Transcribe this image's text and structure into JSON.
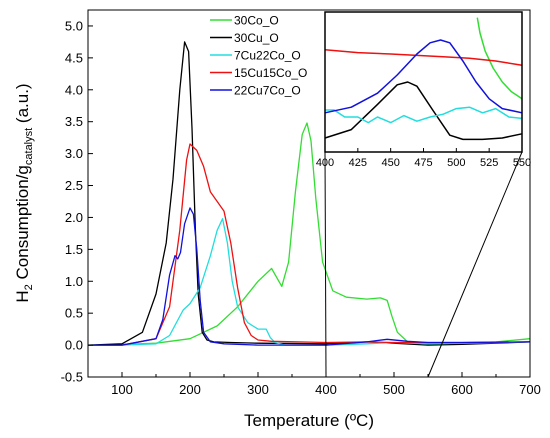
{
  "chart_data": {
    "type": "line",
    "xlabel": "Temperature (ºC)",
    "ylabel_main": "H",
    "ylabel_sub1": "2",
    "ylabel_mid": " Consumption/g",
    "ylabel_sub2": "catalyst",
    "ylabel_end": " (a.u.)",
    "xlim": [
      50,
      700
    ],
    "ylim": [
      -0.5,
      5.25
    ],
    "xticks": [
      100,
      200,
      300,
      400,
      500,
      600,
      700
    ],
    "yticks": [
      -0.5,
      0.0,
      0.5,
      1.0,
      1.5,
      2.0,
      2.5,
      3.0,
      3.5,
      4.0,
      4.5,
      5.0
    ],
    "ytick_labels": [
      "-0.5",
      "0.0",
      "0.5",
      "1.0",
      "1.5",
      "2.0",
      "2.5",
      "3.0",
      "3.5",
      "4.0",
      "4.5",
      "5.0"
    ],
    "legend_position": "top-center",
    "series": [
      {
        "name": "30Co_O",
        "color": "#33dd33",
        "x": [
          50,
          100,
          150,
          200,
          240,
          270,
          300,
          320,
          335,
          345,
          355,
          365,
          372,
          378,
          385,
          395,
          410,
          430,
          460,
          480,
          490,
          497,
          505,
          520,
          560,
          600,
          650,
          700
        ],
        "y": [
          0.0,
          0.01,
          0.03,
          0.1,
          0.3,
          0.6,
          1.0,
          1.2,
          0.92,
          1.3,
          2.4,
          3.3,
          3.48,
          3.2,
          2.3,
          1.3,
          0.85,
          0.75,
          0.72,
          0.74,
          0.7,
          0.45,
          0.2,
          0.05,
          0.02,
          0.03,
          0.05,
          0.1
        ]
      },
      {
        "name": "30Cu_O",
        "color": "#000000",
        "x": [
          50,
          100,
          130,
          150,
          165,
          175,
          185,
          192,
          198,
          203,
          208,
          212,
          218,
          225,
          235,
          260,
          300,
          400,
          460,
          500,
          550,
          600,
          700
        ],
        "y": [
          0.0,
          0.02,
          0.2,
          0.8,
          1.6,
          2.6,
          4.0,
          4.75,
          4.6,
          3.4,
          1.8,
          0.8,
          0.2,
          0.08,
          0.05,
          0.04,
          0.03,
          0.02,
          0.05,
          0.03,
          0.0,
          0.01,
          0.05
        ]
      },
      {
        "name": "7Cu22Co_O",
        "color": "#22dddd",
        "x": [
          50,
          100,
          150,
          170,
          180,
          190,
          200,
          215,
          230,
          240,
          248,
          255,
          262,
          270,
          285,
          300,
          312,
          318,
          325,
          340,
          400,
          460,
          500,
          550,
          600,
          700
        ],
        "y": [
          0.0,
          0.0,
          0.02,
          0.15,
          0.35,
          0.55,
          0.65,
          0.9,
          1.4,
          1.8,
          1.98,
          1.6,
          1.0,
          0.6,
          0.35,
          0.25,
          0.25,
          0.12,
          0.04,
          0.0,
          0.0,
          0.02,
          0.04,
          0.02,
          0.03,
          0.05
        ]
      },
      {
        "name": "15Cu15Co_O",
        "color": "#ee1111",
        "x": [
          50,
          100,
          150,
          170,
          185,
          195,
          200,
          210,
          220,
          230,
          240,
          250,
          260,
          270,
          280,
          290,
          300,
          320,
          360,
          400,
          460,
          500,
          550,
          600,
          700
        ],
        "y": [
          0.0,
          0.0,
          0.1,
          0.6,
          1.8,
          2.9,
          3.15,
          3.05,
          2.8,
          2.4,
          2.25,
          2.1,
          1.6,
          0.9,
          0.35,
          0.15,
          0.08,
          0.06,
          0.05,
          0.04,
          0.05,
          0.04,
          0.04,
          0.04,
          0.05
        ]
      },
      {
        "name": "22Cu7Co_O",
        "color": "#1111dd",
        "x": [
          50,
          100,
          150,
          160,
          170,
          178,
          182,
          186,
          192,
          200,
          205,
          210,
          215,
          220,
          230,
          250,
          300,
          400,
          460,
          490,
          520,
          550,
          600,
          700
        ],
        "y": [
          0.0,
          0.0,
          0.1,
          0.4,
          1.1,
          1.4,
          1.35,
          1.45,
          1.9,
          2.15,
          2.05,
          1.5,
          0.7,
          0.2,
          0.05,
          0.02,
          0.0,
          0.0,
          0.05,
          0.09,
          0.06,
          0.04,
          0.04,
          0.05
        ]
      }
    ],
    "inset": {
      "xlim": [
        400,
        550
      ],
      "xticks": [
        400,
        425,
        450,
        475,
        500,
        525,
        550
      ],
      "series": [
        {
          "name": "30Co_O",
          "color": "#33dd33",
          "x": [
            516,
            518,
            522,
            528,
            535,
            542,
            550
          ],
          "y": [
            0.96,
            0.85,
            0.72,
            0.6,
            0.5,
            0.43,
            0.38
          ]
        },
        {
          "name": "30Cu_O",
          "color": "#000000",
          "x": [
            400,
            420,
            440,
            455,
            463,
            470,
            482,
            495,
            505,
            520,
            535,
            550
          ],
          "y": [
            0.1,
            0.16,
            0.34,
            0.48,
            0.5,
            0.47,
            0.3,
            0.12,
            0.09,
            0.09,
            0.1,
            0.13
          ]
        },
        {
          "name": "7Cu22Co_O",
          "color": "#22dddd",
          "x": [
            400,
            407,
            415,
            425,
            433,
            440,
            450,
            460,
            470,
            480,
            490,
            500,
            510,
            520,
            530,
            540,
            550
          ],
          "y": [
            0.3,
            0.3,
            0.25,
            0.25,
            0.21,
            0.25,
            0.21,
            0.26,
            0.22,
            0.25,
            0.27,
            0.31,
            0.32,
            0.28,
            0.31,
            0.25,
            0.24
          ]
        },
        {
          "name": "15Cu15Co_O",
          "color": "#ee1111",
          "x": [
            400,
            425,
            450,
            470,
            490,
            510,
            530,
            550
          ],
          "y": [
            0.73,
            0.71,
            0.7,
            0.69,
            0.68,
            0.67,
            0.65,
            0.62
          ]
        },
        {
          "name": "22Cu7Co_O",
          "color": "#1111dd",
          "x": [
            400,
            420,
            440,
            455,
            470,
            480,
            488,
            495,
            505,
            515,
            525,
            535,
            545,
            550
          ],
          "y": [
            0.28,
            0.32,
            0.42,
            0.55,
            0.7,
            0.78,
            0.8,
            0.78,
            0.65,
            0.5,
            0.38,
            0.31,
            0.29,
            0.28
          ]
        }
      ]
    }
  }
}
